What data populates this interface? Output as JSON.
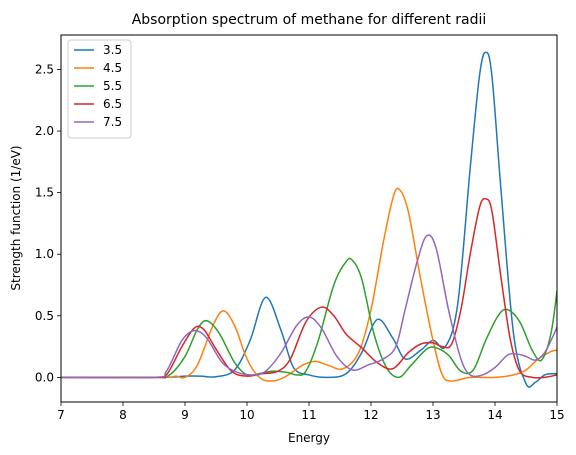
{
  "chart_data": {
    "type": "line",
    "title": "Absorption spectrum of methane for different radii",
    "xlabel": "Energy",
    "ylabel": "Strength function (1/eV)",
    "xlim": [
      7,
      15
    ],
    "ylim": [
      -0.2,
      2.78
    ],
    "x_ticks": [
      7,
      8,
      9,
      10,
      11,
      12,
      13,
      14,
      15
    ],
    "x_tick_labels": [
      "7",
      "8",
      "9",
      "10",
      "11",
      "12",
      "13",
      "14",
      "15"
    ],
    "y_ticks": [
      0,
      0.5,
      1,
      1.5,
      2,
      2.5
    ],
    "y_tick_labels": [
      "0.0",
      "0.5",
      "1.0",
      "1.5",
      "2.0",
      "2.5"
    ],
    "grid": false,
    "legend_position": "top-left",
    "series": [
      {
        "name": "3.5",
        "color": "#1f77b4",
        "points": [
          [
            7,
            0
          ],
          [
            8.6,
            0
          ],
          [
            9.0,
            0.01
          ],
          [
            9.25,
            0.01
          ],
          [
            9.5,
            0.005
          ],
          [
            9.8,
            0.06
          ],
          [
            10.05,
            0.3
          ],
          [
            10.3,
            0.65
          ],
          [
            10.55,
            0.38
          ],
          [
            10.75,
            0.08
          ],
          [
            11.0,
            0.02
          ],
          [
            11.3,
            0.0
          ],
          [
            11.6,
            0.03
          ],
          [
            11.85,
            0.2
          ],
          [
            12.1,
            0.47
          ],
          [
            12.35,
            0.32
          ],
          [
            12.55,
            0.15
          ],
          [
            12.8,
            0.22
          ],
          [
            13.0,
            0.3
          ],
          [
            13.2,
            0.25
          ],
          [
            13.4,
            0.6
          ],
          [
            13.6,
            1.7
          ],
          [
            13.75,
            2.45
          ],
          [
            13.85,
            2.64
          ],
          [
            13.95,
            2.45
          ],
          [
            14.1,
            1.5
          ],
          [
            14.3,
            0.35
          ],
          [
            14.5,
            -0.05
          ],
          [
            14.65,
            -0.04
          ],
          [
            14.8,
            0.02
          ],
          [
            14.95,
            0.03
          ],
          [
            15.0,
            0.03
          ]
        ]
      },
      {
        "name": "4.5",
        "color": "#ff7f0e",
        "points": [
          [
            7,
            0
          ],
          [
            8.6,
            0
          ],
          [
            8.85,
            0.01
          ],
          [
            9.0,
            0.0
          ],
          [
            9.2,
            0.1
          ],
          [
            9.45,
            0.42
          ],
          [
            9.62,
            0.54
          ],
          [
            9.8,
            0.42
          ],
          [
            10.0,
            0.15
          ],
          [
            10.2,
            0.0
          ],
          [
            10.4,
            -0.03
          ],
          [
            10.6,
            0.0
          ],
          [
            10.9,
            0.1
          ],
          [
            11.1,
            0.13
          ],
          [
            11.3,
            0.1
          ],
          [
            11.55,
            0.07
          ],
          [
            11.8,
            0.2
          ],
          [
            12.0,
            0.55
          ],
          [
            12.2,
            1.1
          ],
          [
            12.35,
            1.45
          ],
          [
            12.45,
            1.53
          ],
          [
            12.6,
            1.35
          ],
          [
            12.8,
            0.8
          ],
          [
            13.0,
            0.3
          ],
          [
            13.15,
            0.02
          ],
          [
            13.3,
            -0.03
          ],
          [
            13.6,
            0.0
          ],
          [
            14.0,
            0.0
          ],
          [
            14.3,
            0.02
          ],
          [
            14.5,
            0.06
          ],
          [
            14.7,
            0.15
          ],
          [
            14.9,
            0.21
          ],
          [
            15.0,
            0.22
          ]
        ]
      },
      {
        "name": "5.5",
        "color": "#2ca02c",
        "points": [
          [
            7,
            0
          ],
          [
            8.5,
            0
          ],
          [
            8.75,
            0.02
          ],
          [
            9.0,
            0.17
          ],
          [
            9.2,
            0.39
          ],
          [
            9.35,
            0.46
          ],
          [
            9.55,
            0.36
          ],
          [
            9.8,
            0.12
          ],
          [
            10.0,
            0.02
          ],
          [
            10.2,
            0.03
          ],
          [
            10.4,
            0.05
          ],
          [
            10.65,
            0.04
          ],
          [
            10.8,
            0.02
          ],
          [
            10.95,
            0.05
          ],
          [
            11.15,
            0.3
          ],
          [
            11.4,
            0.75
          ],
          [
            11.6,
            0.94
          ],
          [
            11.7,
            0.95
          ],
          [
            11.85,
            0.8
          ],
          [
            12.05,
            0.35
          ],
          [
            12.25,
            0.08
          ],
          [
            12.45,
            0.0
          ],
          [
            12.65,
            0.1
          ],
          [
            12.9,
            0.23
          ],
          [
            13.05,
            0.24
          ],
          [
            13.25,
            0.18
          ],
          [
            13.45,
            0.05
          ],
          [
            13.65,
            0.06
          ],
          [
            13.85,
            0.3
          ],
          [
            14.05,
            0.5
          ],
          [
            14.2,
            0.55
          ],
          [
            14.4,
            0.45
          ],
          [
            14.6,
            0.22
          ],
          [
            14.75,
            0.14
          ],
          [
            14.9,
            0.35
          ],
          [
            15.0,
            0.7
          ]
        ]
      },
      {
        "name": "6.5",
        "color": "#d62728",
        "points": [
          [
            7,
            0
          ],
          [
            8.5,
            0
          ],
          [
            8.7,
            0.02
          ],
          [
            8.95,
            0.25
          ],
          [
            9.15,
            0.4
          ],
          [
            9.3,
            0.39
          ],
          [
            9.5,
            0.23
          ],
          [
            9.75,
            0.05
          ],
          [
            10.0,
            0.01
          ],
          [
            10.25,
            0.03
          ],
          [
            10.5,
            0.05
          ],
          [
            10.7,
            0.15
          ],
          [
            10.95,
            0.45
          ],
          [
            11.2,
            0.57
          ],
          [
            11.4,
            0.5
          ],
          [
            11.6,
            0.35
          ],
          [
            11.85,
            0.24
          ],
          [
            12.1,
            0.12
          ],
          [
            12.35,
            0.07
          ],
          [
            12.6,
            0.2
          ],
          [
            12.8,
            0.27
          ],
          [
            13.0,
            0.28
          ],
          [
            13.15,
            0.25
          ],
          [
            13.3,
            0.27
          ],
          [
            13.45,
            0.55
          ],
          [
            13.6,
            1.0
          ],
          [
            13.75,
            1.38
          ],
          [
            13.85,
            1.45
          ],
          [
            13.95,
            1.35
          ],
          [
            14.1,
            0.8
          ],
          [
            14.25,
            0.3
          ],
          [
            14.4,
            0.05
          ],
          [
            14.6,
            0.0
          ],
          [
            14.8,
            0.0
          ],
          [
            15.0,
            0.02
          ]
        ]
      },
      {
        "name": "7.5",
        "color": "#9467bd",
        "points": [
          [
            7,
            0
          ],
          [
            8.5,
            0
          ],
          [
            8.7,
            0.05
          ],
          [
            8.95,
            0.3
          ],
          [
            9.15,
            0.38
          ],
          [
            9.35,
            0.32
          ],
          [
            9.6,
            0.12
          ],
          [
            9.85,
            0.04
          ],
          [
            10.1,
            0.02
          ],
          [
            10.3,
            0.05
          ],
          [
            10.55,
            0.2
          ],
          [
            10.8,
            0.42
          ],
          [
            11.0,
            0.49
          ],
          [
            11.2,
            0.4
          ],
          [
            11.45,
            0.17
          ],
          [
            11.7,
            0.06
          ],
          [
            11.95,
            0.1
          ],
          [
            12.2,
            0.15
          ],
          [
            12.4,
            0.25
          ],
          [
            12.55,
            0.55
          ],
          [
            12.75,
            0.95
          ],
          [
            12.9,
            1.15
          ],
          [
            13.05,
            1.05
          ],
          [
            13.25,
            0.55
          ],
          [
            13.45,
            0.15
          ],
          [
            13.6,
            0.02
          ],
          [
            13.8,
            0.02
          ],
          [
            14.0,
            0.08
          ],
          [
            14.2,
            0.18
          ],
          [
            14.35,
            0.19
          ],
          [
            14.5,
            0.17
          ],
          [
            14.65,
            0.14
          ],
          [
            14.8,
            0.2
          ],
          [
            14.95,
            0.35
          ],
          [
            15.0,
            0.41
          ]
        ]
      }
    ]
  }
}
